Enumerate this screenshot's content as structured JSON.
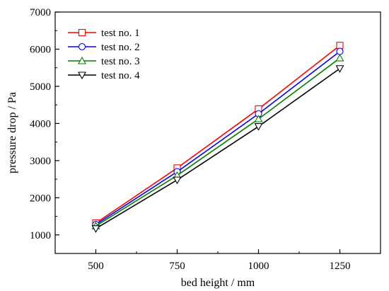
{
  "chart_data": {
    "type": "line",
    "title": "",
    "xlabel": "bed height / mm",
    "ylabel": "pressure drop / Pa",
    "x": [
      500,
      750,
      1000,
      1250
    ],
    "xticks": [
      500,
      750,
      1000,
      1250
    ],
    "yticks": [
      1000,
      2000,
      3000,
      4000,
      5000,
      6000,
      7000
    ],
    "xlim": [
      375,
      1375
    ],
    "ylim": [
      500,
      7000
    ],
    "grid": false,
    "legend_position": "top-left",
    "series": [
      {
        "name": "test no. 1",
        "color": "#ff0000",
        "marker": "square",
        "values": [
          1320,
          2800,
          4390,
          6100
        ]
      },
      {
        "name": "test no. 2",
        "color": "#0000ff",
        "marker": "circle",
        "values": [
          1280,
          2700,
          4260,
          5940
        ]
      },
      {
        "name": "test no. 3",
        "color": "#008000",
        "marker": "triangle-up",
        "values": [
          1240,
          2600,
          4120,
          5760
        ]
      },
      {
        "name": "test no. 4",
        "color": "#000000",
        "marker": "triangle-down",
        "values": [
          1170,
          2480,
          3920,
          5480
        ]
      }
    ]
  }
}
